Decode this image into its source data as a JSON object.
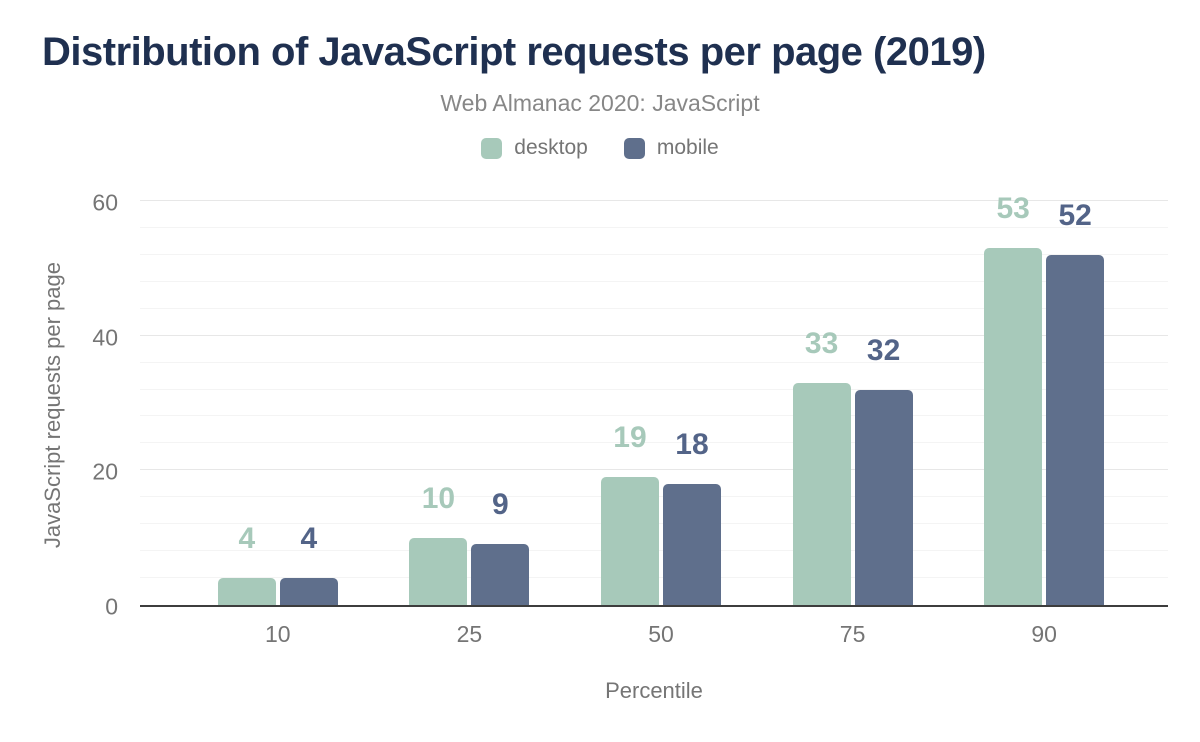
{
  "chart_data": {
    "type": "bar",
    "title": "Distribution of JavaScript requests per page (2019)",
    "subtitle": "Web Almanac 2020: JavaScript",
    "categories": [
      "10",
      "25",
      "50",
      "75",
      "90"
    ],
    "series": [
      {
        "name": "desktop",
        "color": "#a7c9ba",
        "label_color": "#a7c9ba",
        "values": [
          4,
          10,
          19,
          33,
          53
        ]
      },
      {
        "name": "mobile",
        "color": "#5f6f8c",
        "label_color": "#536488",
        "values": [
          4,
          9,
          18,
          32,
          52
        ]
      }
    ],
    "xlabel": "Percentile",
    "ylabel": "JavaScript requests per page",
    "ylim": [
      0,
      60
    ],
    "y_ticks": [
      0,
      20,
      40,
      60
    ],
    "minor_grid_step": 4,
    "grid": true,
    "legend_position": "top",
    "data_labels": true
  },
  "theme": {
    "background": "#ffffff",
    "title_color": "#1f3050",
    "subtitle_color": "#878787",
    "axis_text_color": "#757575",
    "axis_line_color": "#3d3d3d",
    "major_grid_color": "#e7e7e7",
    "minor_grid_color": "#f4f4f4"
  }
}
